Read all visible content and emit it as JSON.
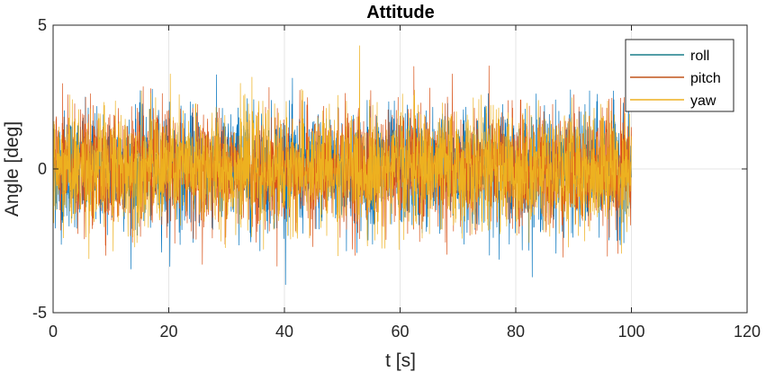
{
  "chart_data": {
    "type": "line",
    "title": "Attitude",
    "xlabel": "t [s]",
    "ylabel": "Angle [deg]",
    "xlim": [
      0,
      120
    ],
    "ylim": [
      -5,
      5
    ],
    "xticks": [
      0,
      20,
      40,
      60,
      80,
      100,
      120
    ],
    "xtick_labels": [
      "0",
      "20",
      "40",
      "60",
      "80",
      "100",
      "120"
    ],
    "yticks": [
      -5,
      0,
      5
    ],
    "ytick_labels": [
      "-5",
      "0",
      "5"
    ],
    "grid": true,
    "legend_position": "top-right",
    "series": [
      {
        "name": "roll",
        "color": "#0072BD",
        "t_range": [
          0,
          100
        ],
        "mean": 0,
        "std": 1.0,
        "min": -4.5,
        "max": 4.3
      },
      {
        "name": "pitch",
        "color": "#D95319",
        "t_range": [
          0,
          100
        ],
        "mean": 0,
        "std": 1.0,
        "min": -4.5,
        "max": 4.3
      },
      {
        "name": "yaw",
        "color": "#EDB120",
        "t_range": [
          0,
          100
        ],
        "mean": 0,
        "std": 1.0,
        "min": -4.5,
        "max": 4.3
      }
    ],
    "legend_line_colors": [
      "#1a7f8a",
      "#c0551c",
      "#EDB120"
    ]
  }
}
